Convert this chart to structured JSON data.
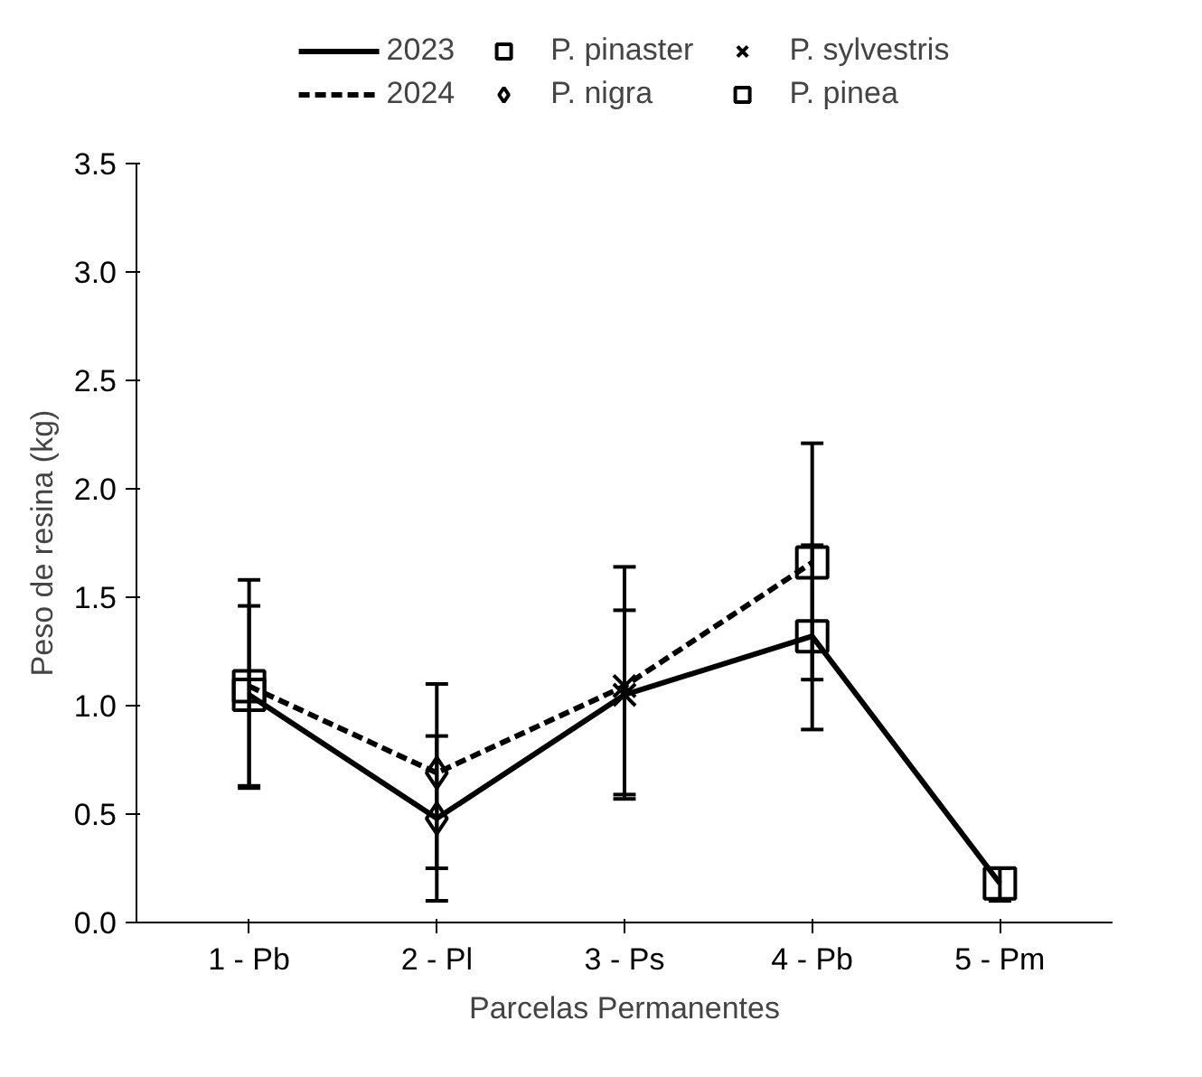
{
  "chart_data": {
    "type": "line",
    "xlabel": "Parcelas Permanentes",
    "ylabel": "Peso de resina (kg)",
    "categories": [
      "1 - Pb",
      "2 - Pl",
      "3 - Ps",
      "4 - Pb",
      "5 - Pm"
    ],
    "series": [
      {
        "name": "2023",
        "color": "#000000",
        "line_style": "solid",
        "marker": "none",
        "values": [
          1.05,
          0.48,
          1.05,
          1.32,
          0.18
        ],
        "errors": [
          [
            0.63,
            1.46
          ],
          [
            0.1,
            0.86
          ],
          [
            0.59,
            1.44
          ],
          [
            0.89,
            1.74
          ],
          [
            0.1,
            0.25
          ]
        ]
      },
      {
        "name": "2024",
        "color": "#000000",
        "line_style": "dashed",
        "marker": "none",
        "values": [
          1.09,
          0.69,
          1.09,
          1.66,
          null
        ],
        "errors": [
          [
            0.62,
            1.58
          ],
          [
            0.25,
            1.1
          ],
          [
            0.57,
            1.64
          ],
          [
            1.12,
            2.21
          ],
          null
        ]
      },
      {
        "name": "P. pinaster",
        "type": "scatter",
        "color": "#000000",
        "marker": "square",
        "x": [
          "1 - Pb",
          "1 - Pb",
          "4 - Pb",
          "4 - Pb"
        ],
        "values": [
          1.05,
          1.09,
          1.32,
          1.66
        ]
      },
      {
        "name": "P. nigra",
        "type": "scatter",
        "color": "#000000",
        "marker": "diamond",
        "x": [
          "2 - Pl",
          "2 - Pl"
        ],
        "values": [
          0.48,
          0.69
        ]
      },
      {
        "name": "P. sylvestris",
        "type": "scatter",
        "color": "#000000",
        "marker": "x",
        "x": [
          "3 - Ps",
          "3 - Ps"
        ],
        "values": [
          1.05,
          1.09
        ]
      },
      {
        "name": "P. pinea",
        "type": "scatter",
        "color": "#000000",
        "marker": "square",
        "x": [
          "5 - Pm"
        ],
        "values": [
          0.18
        ]
      }
    ],
    "ylim": [
      0,
      3.5
    ],
    "yticks": [
      {
        "value": 0,
        "label": "0.0"
      },
      {
        "value": 0.5,
        "label": "0.5"
      },
      {
        "value": 1,
        "label": "1.0"
      },
      {
        "value": 1.5,
        "label": "1.5"
      },
      {
        "value": 2,
        "label": "2.0"
      },
      {
        "value": 2.5,
        "label": "2.5"
      },
      {
        "value": 3,
        "label": "3.0"
      },
      {
        "value": 3.5,
        "label": "3.5"
      }
    ],
    "grid": false,
    "legend": "top"
  }
}
